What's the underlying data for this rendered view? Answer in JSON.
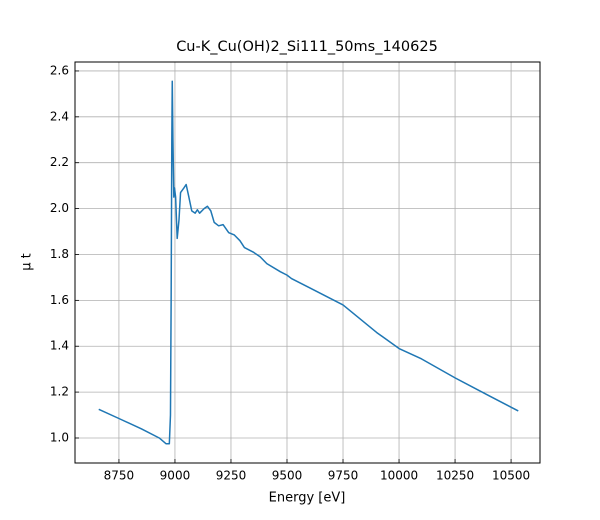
{
  "chart_data": {
    "type": "line",
    "title": "Cu-K_Cu(OH)2_Si111_50ms_140625",
    "xlabel": "Energy [eV]",
    "ylabel": "μ t",
    "x": [
      8660,
      8750,
      8850,
      8930,
      8960,
      8975,
      8980,
      8983,
      8986,
      8988,
      8991,
      8995,
      8998,
      9003,
      9010,
      9018,
      9025,
      9040,
      9050,
      9060,
      9075,
      9090,
      9100,
      9110,
      9130,
      9145,
      9160,
      9175,
      9195,
      9215,
      9240,
      9265,
      9290,
      9310,
      9350,
      9380,
      9410,
      9470,
      9500,
      9520,
      9600,
      9650,
      9750,
      9900,
      10000,
      10100,
      10250,
      10400,
      10532
    ],
    "series": [
      {
        "name": "μ t",
        "color": "#1f77b4",
        "values": [
          1.125,
          1.085,
          1.04,
          1.0,
          0.975,
          0.975,
          1.1,
          1.6,
          2.3,
          2.555,
          2.3,
          2.05,
          2.09,
          2.05,
          1.87,
          1.95,
          2.07,
          2.09,
          2.105,
          2.06,
          1.99,
          1.98,
          1.995,
          1.98,
          2.0,
          2.01,
          1.99,
          1.94,
          1.925,
          1.93,
          1.895,
          1.885,
          1.86,
          1.83,
          1.81,
          1.79,
          1.76,
          1.725,
          1.71,
          1.695,
          1.655,
          1.63,
          1.58,
          1.46,
          1.39,
          1.345,
          1.262,
          1.185,
          1.118
        ]
      }
    ],
    "xlim": [
      8554,
      10629
    ],
    "ylim": [
      0.891,
      2.639
    ],
    "xticks": [
      8750,
      9000,
      9250,
      9500,
      9750,
      10000,
      10250,
      10500
    ],
    "yticks": [
      {
        "value": 1.0,
        "label": "1.0"
      },
      1.2,
      1.4,
      1.6,
      1.8,
      {
        "value": 2.0,
        "label": "2.0"
      },
      2.2,
      2.4,
      2.6
    ],
    "grid": true
  }
}
